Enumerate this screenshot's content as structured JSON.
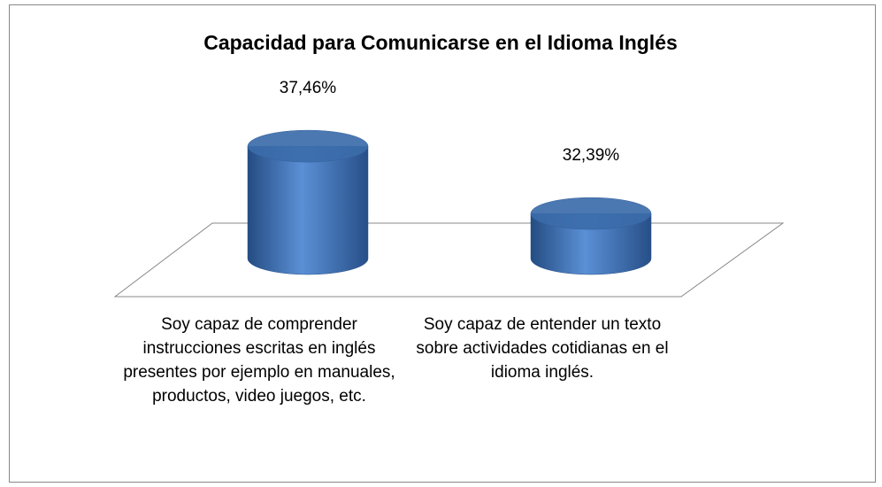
{
  "chart_data": {
    "type": "bar3d",
    "title": "Capacidad para Comunicarse en el Idioma Inglés",
    "categories": [
      "Soy capaz de comprender instrucciones escritas en inglés presentes por ejemplo en manuales, productos, video juegos, etc.",
      "Soy capaz de entender un texto sobre actividades cotidianas en el idioma inglés."
    ],
    "values": [
      37.46,
      32.39
    ],
    "value_labels": [
      "37,46%",
      "32,39%"
    ],
    "color": "#4a7cc0",
    "ylim": [
      29,
      40
    ]
  }
}
